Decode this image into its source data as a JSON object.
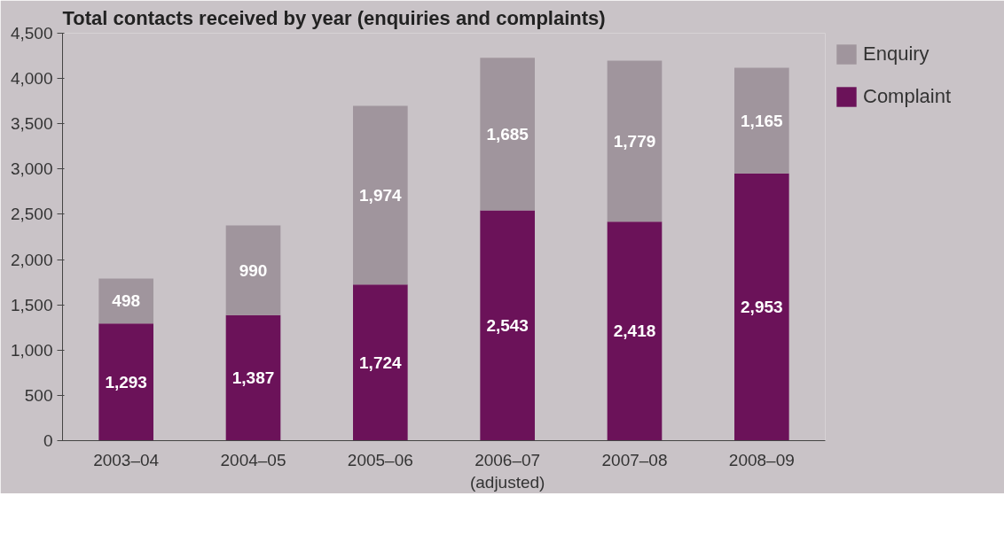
{
  "chart_data": {
    "type": "bar",
    "stacked": true,
    "title": "Total contacts received by year (enquiries and complaints)",
    "categories": [
      "2003–04",
      "2004–05",
      "2005–06",
      "2006–07\n(adjusted)",
      "2007–08",
      "2008–09"
    ],
    "series": [
      {
        "name": "Complaint",
        "color": "#6b1259",
        "values": [
          1293,
          1387,
          1724,
          2543,
          2418,
          2953
        ],
        "value_labels": [
          "1,293",
          "1,387",
          "1,724",
          "2,543",
          "2,418",
          "2,953"
        ]
      },
      {
        "name": "Enquiry",
        "color": "#a0959d",
        "values": [
          498,
          990,
          1974,
          1685,
          1779,
          1165
        ],
        "value_labels": [
          "498",
          "990",
          "1,974",
          "1,685",
          "1,779",
          "1,165"
        ]
      }
    ],
    "ylim": [
      0,
      4500
    ],
    "yticks": [
      {
        "value": 0,
        "label": "0"
      },
      {
        "value": 500,
        "label": "500"
      },
      {
        "value": 1000,
        "label": "1,000"
      },
      {
        "value": 1500,
        "label": "1,500"
      },
      {
        "value": 2000,
        "label": "2,000"
      },
      {
        "value": 2500,
        "label": "2,500"
      },
      {
        "value": 3000,
        "label": "3,000"
      },
      {
        "value": 3500,
        "label": "3,500"
      },
      {
        "value": 4000,
        "label": "4,000"
      },
      {
        "value": 4500,
        "label": "4,500"
      }
    ],
    "grid": false,
    "legend": "top right"
  }
}
